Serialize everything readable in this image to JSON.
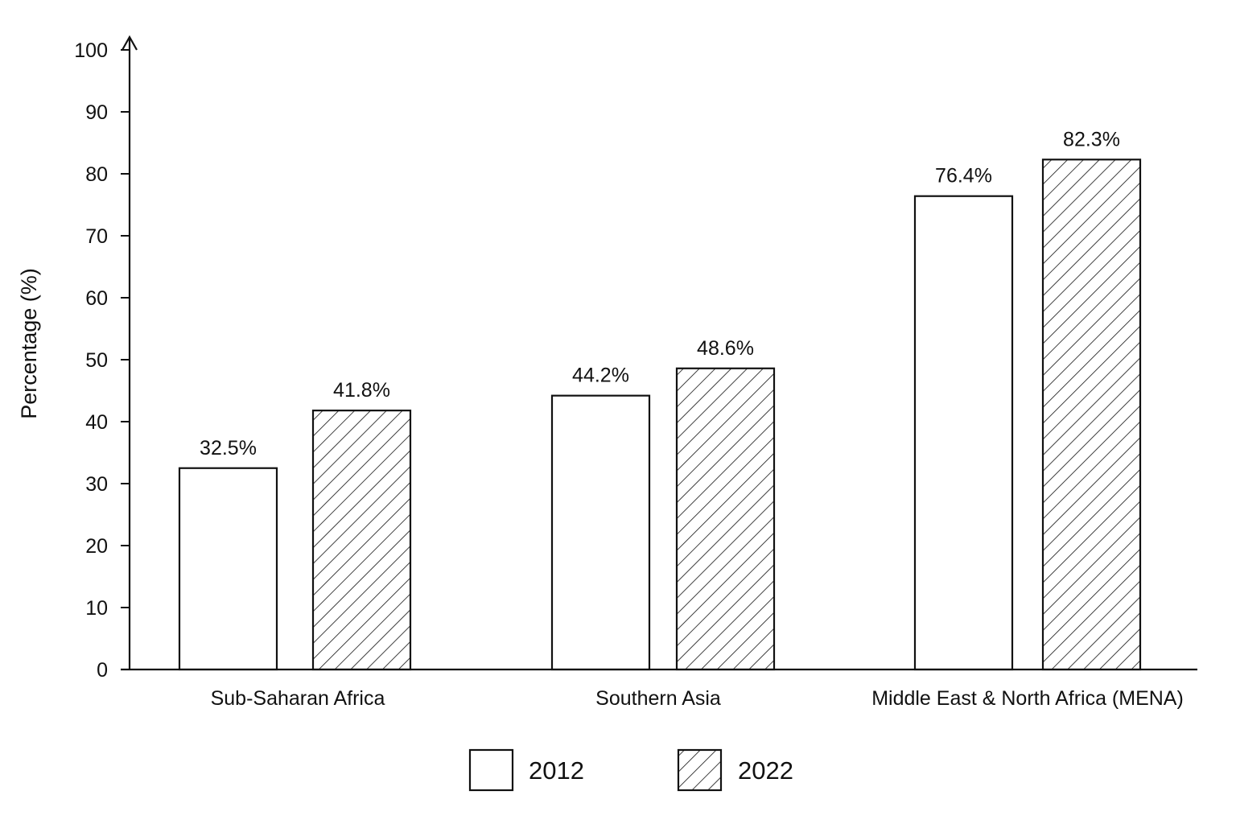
{
  "chart_data": {
    "type": "bar",
    "title": "",
    "xlabel": "",
    "ylabel": "Percentage (%)",
    "ylim": [
      0,
      100
    ],
    "yticks": [
      0,
      10,
      20,
      30,
      40,
      50,
      60,
      70,
      80,
      90,
      100
    ],
    "grid": false,
    "legend_position": "bottom-center",
    "categories": [
      "Sub-Saharan Africa",
      "Southern Asia",
      "Middle East & North Africa (MENA)"
    ],
    "series": [
      {
        "name": "2012",
        "values": [
          32.5,
          44.2,
          76.4
        ],
        "labels": [
          "32.5%",
          "44.2%",
          "76.4%"
        ],
        "fill": "#ffffff",
        "pattern": "none"
      },
      {
        "name": "2022",
        "values": [
          41.8,
          48.6,
          82.3
        ],
        "labels": [
          "41.8%",
          "48.6%",
          "82.3%"
        ],
        "fill": "#ffffff",
        "pattern": "diagonal-hatch"
      }
    ],
    "colors": {
      "stroke": "#111111",
      "background": "#ffffff"
    }
  }
}
